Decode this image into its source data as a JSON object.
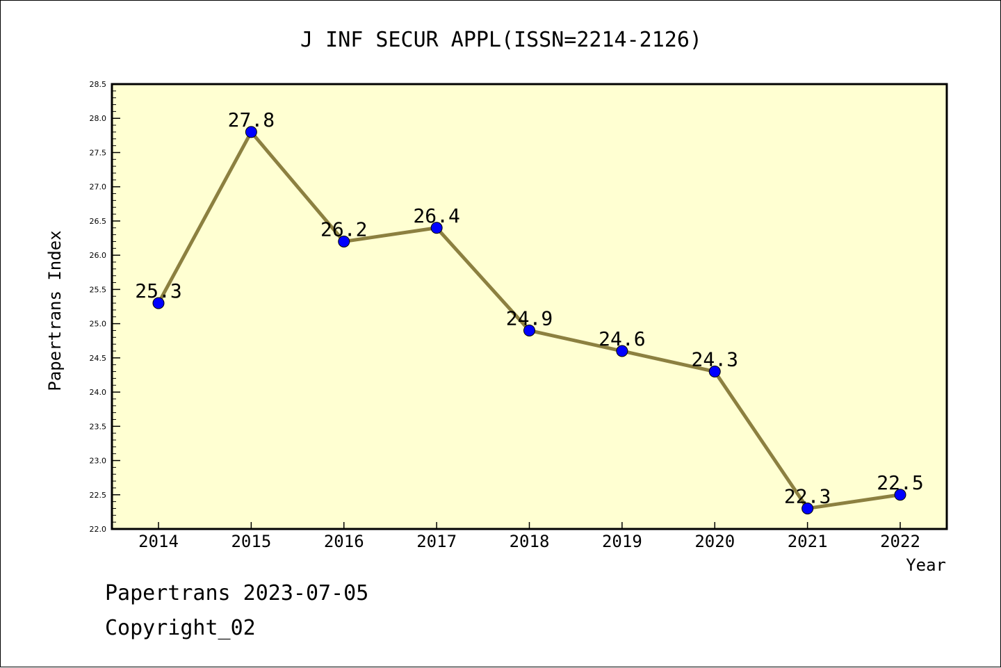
{
  "chart_data": {
    "type": "line",
    "title": "J INF SECUR APPL(ISSN=2214-2126)",
    "xlabel": "Year",
    "ylabel": "Papertrans Index",
    "categories": [
      "2014",
      "2015",
      "2016",
      "2017",
      "2018",
      "2019",
      "2020",
      "2021",
      "2022"
    ],
    "series": [
      {
        "values": [
          25.3,
          27.8,
          26.2,
          26.4,
          24.9,
          24.6,
          24.3,
          22.3,
          22.5
        ],
        "labels": [
          "25.3",
          "27.8",
          "26.2",
          "26.4",
          "24.9",
          "24.6",
          "24.3",
          "22.3",
          "22.5"
        ]
      }
    ],
    "ylim": [
      22.0,
      28.5
    ],
    "yticks": [
      "22.0",
      "22.5",
      "23.0",
      "23.5",
      "24.0",
      "24.5",
      "25.0",
      "25.5",
      "26.0",
      "26.5",
      "27.0",
      "27.5",
      "28.0",
      "28.5"
    ],
    "grid": false,
    "colors": {
      "plot_background": "#ffffd2",
      "line": "#8c8040",
      "marker": "#0000ff"
    }
  },
  "footer": {
    "line1": "Papertrans 2023-07-05",
    "line2": "Copyright_02"
  }
}
